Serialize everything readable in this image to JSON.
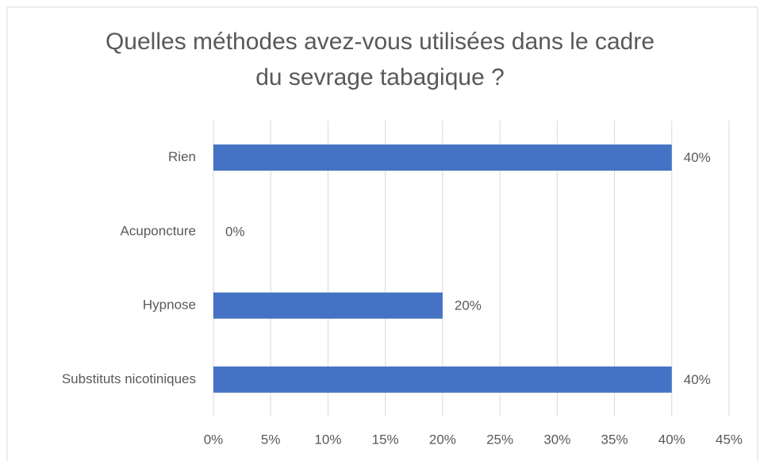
{
  "chart_data": {
    "type": "hbar",
    "title": "Quelles méthodes avez-vous utilisées dans le cadre du sevrage tabagique ?",
    "categories": [
      "Rien",
      "Acuponcture",
      "Hypnose",
      "Substituts nicotiniques"
    ],
    "values": [
      40,
      0,
      20,
      40
    ],
    "value_labels": [
      "40%",
      "0%",
      "20%",
      "40%"
    ],
    "color": "#4472c4",
    "xlim": [
      0,
      45
    ],
    "xticks": [
      {
        "value": 0,
        "label": "0%"
      },
      {
        "value": 5,
        "label": "5%"
      },
      {
        "value": 10,
        "label": "10%"
      },
      {
        "value": 15,
        "label": "15%"
      },
      {
        "value": 20,
        "label": "20%"
      },
      {
        "value": 25,
        "label": "25%"
      },
      {
        "value": 30,
        "label": "30%"
      },
      {
        "value": 35,
        "label": "35%"
      },
      {
        "value": 40,
        "label": "40%"
      },
      {
        "value": 45,
        "label": "45%"
      }
    ],
    "grid": true
  }
}
